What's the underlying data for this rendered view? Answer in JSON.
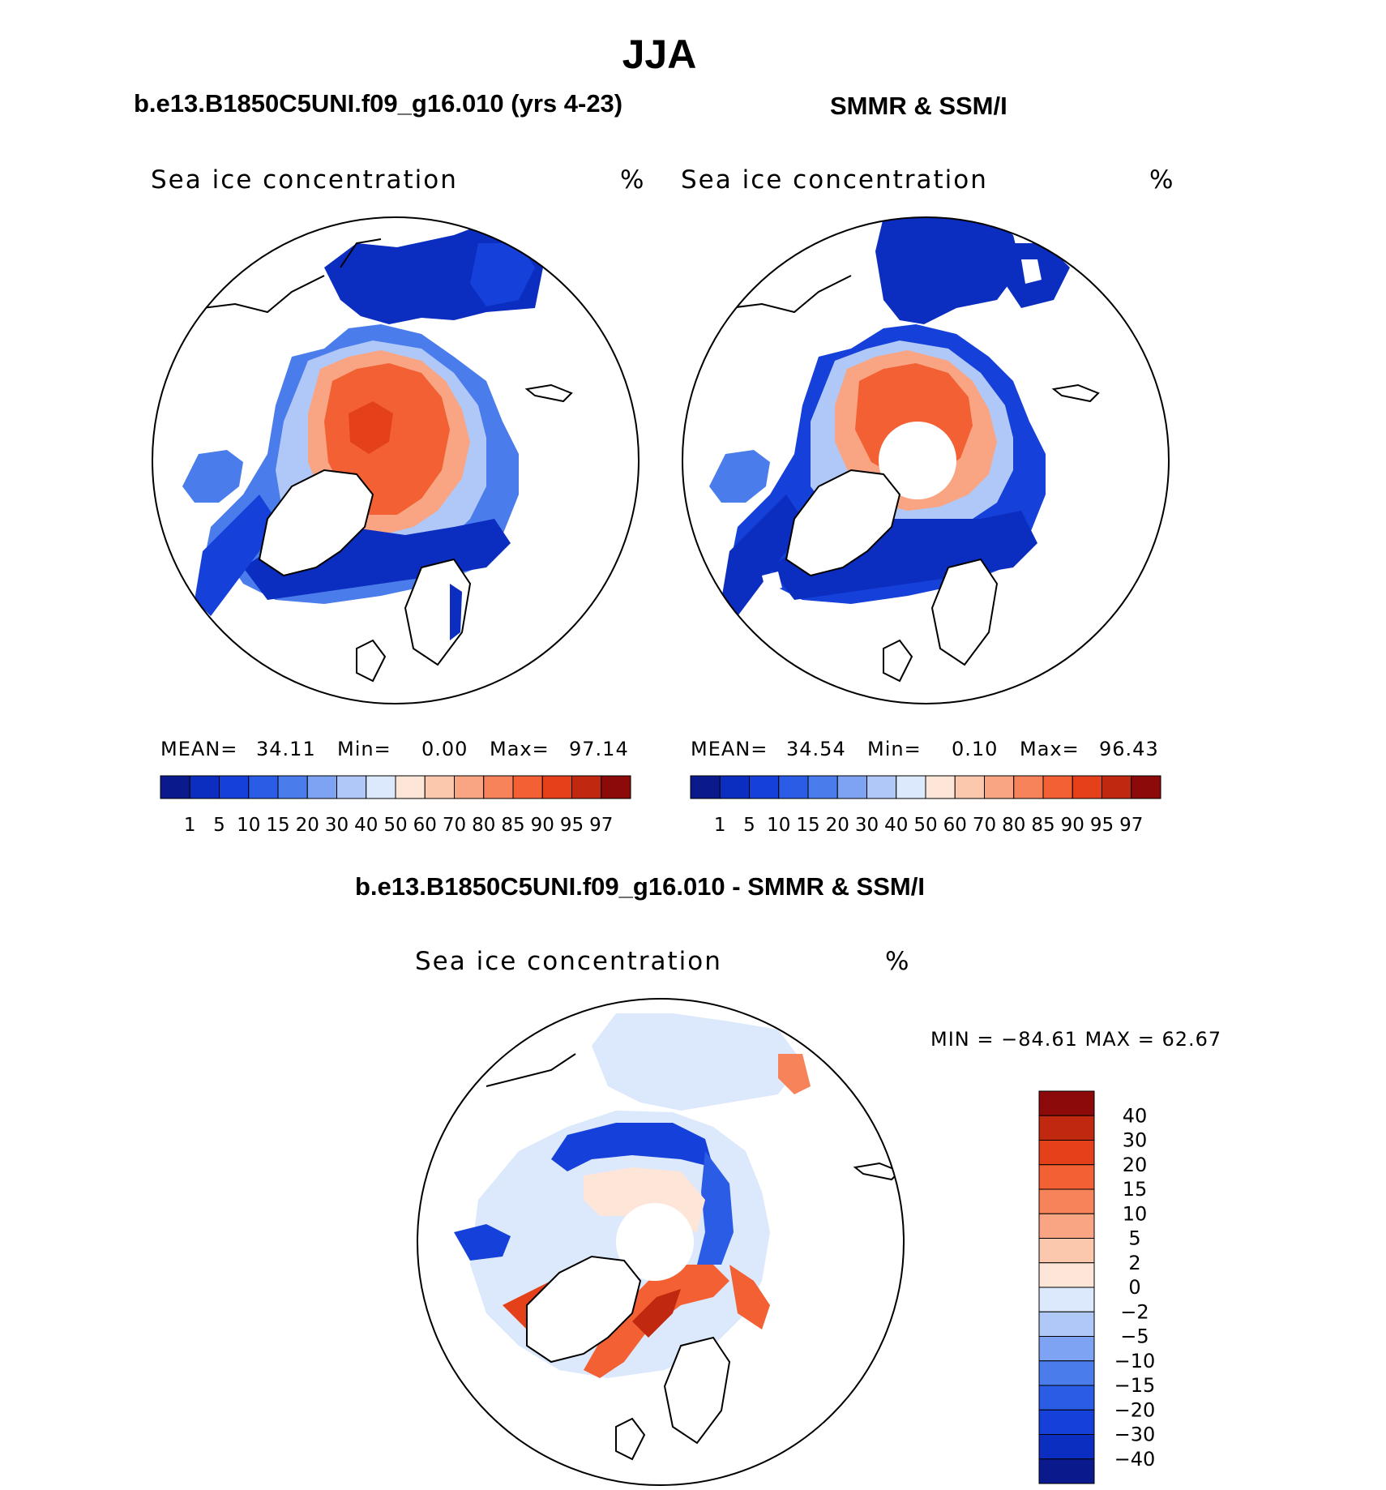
{
  "figure": {
    "main_title": "JJA",
    "diff_stats": "MIN = −84.61 MAX =   62.67"
  },
  "chart_data": [
    {
      "type": "heatmap",
      "subtitle": "b.e13.B1850C5UNI.f09_g16.010 (yrs 4-23)",
      "title": "Sea ice concentration",
      "units": "%",
      "projection": "north polar stereographic",
      "stats": {
        "mean_label": "MEAN=",
        "mean": "34.11",
        "min_label": "Min=",
        "min": "0.00",
        "max_label": "Max=",
        "max": "97.14"
      },
      "colorbar_levels": [
        "1",
        "5",
        "10",
        "15",
        "20",
        "30",
        "40",
        "50",
        "60",
        "70",
        "80",
        "85",
        "90",
        "95",
        "97"
      ],
      "colorbar_colors": [
        "#0a1a8c",
        "#0b2dc0",
        "#1540d9",
        "#2a5ce6",
        "#4a7cec",
        "#7ea3f2",
        "#b0c8f7",
        "#dce8fb",
        "#fde6d8",
        "#fbc8ad",
        "#f9a583",
        "#f6835a",
        "#f26033",
        "#e4411a",
        "#c02810",
        "#8c0a0a"
      ]
    },
    {
      "type": "heatmap",
      "subtitle": "SMMR & SSM/I",
      "title": "Sea ice concentration",
      "units": "%",
      "projection": "north polar stereographic",
      "stats": {
        "mean_label": "MEAN=",
        "mean": "34.54",
        "min_label": "Min=",
        "min": "0.10",
        "max_label": "Max=",
        "max": "96.43"
      },
      "colorbar_levels": [
        "1",
        "5",
        "10",
        "15",
        "20",
        "30",
        "40",
        "50",
        "60",
        "70",
        "80",
        "85",
        "90",
        "95",
        "97"
      ],
      "colorbar_colors": [
        "#0a1a8c",
        "#0b2dc0",
        "#1540d9",
        "#2a5ce6",
        "#4a7cec",
        "#7ea3f2",
        "#b0c8f7",
        "#dce8fb",
        "#fde6d8",
        "#fbc8ad",
        "#f9a583",
        "#f6835a",
        "#f26033",
        "#e4411a",
        "#c02810",
        "#8c0a0a"
      ]
    },
    {
      "type": "heatmap",
      "subtitle": "b.e13.B1850C5UNI.f09_g16.010 - SMMR & SSM/I",
      "title": "Sea ice concentration",
      "units": "%",
      "projection": "north polar stereographic",
      "colorbar_levels": [
        "40",
        "30",
        "20",
        "15",
        "10",
        "5",
        "2",
        "0",
        "−2",
        "−5",
        "−10",
        "−15",
        "−20",
        "−30",
        "−40"
      ],
      "colorbar_colors": [
        "#8c0a0a",
        "#c02810",
        "#e4411a",
        "#f26033",
        "#f6835a",
        "#f9a583",
        "#fbc8ad",
        "#fde6d8",
        "#dce8fb",
        "#b0c8f7",
        "#7ea3f2",
        "#4a7cec",
        "#2a5ce6",
        "#1540d9",
        "#0b2dc0",
        "#0a1a8c"
      ]
    }
  ]
}
